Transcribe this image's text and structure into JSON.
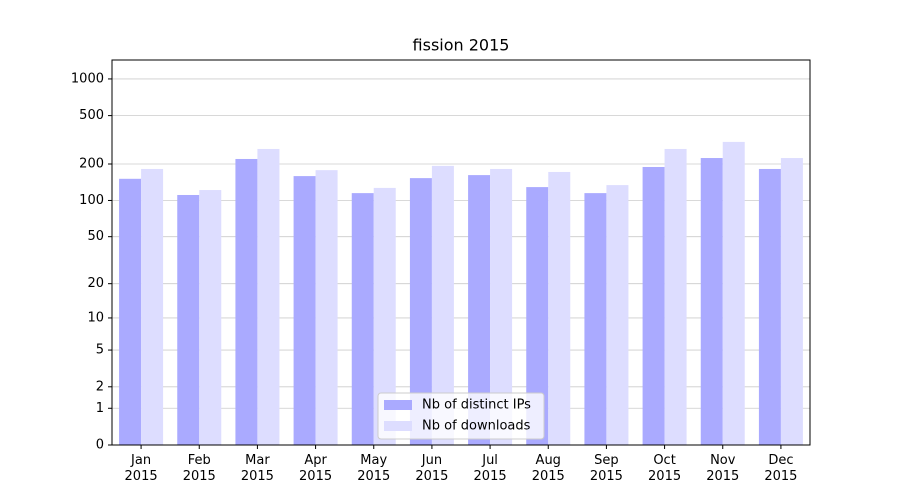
{
  "chart_data": {
    "type": "bar",
    "title": "fission 2015",
    "categories": [
      "Jan\n2015",
      "Feb\n2015",
      "Mar\n2015",
      "Apr\n2015",
      "May\n2015",
      "Jun\n2015",
      "Jul\n2015",
      "Aug\n2015",
      "Sep\n2015",
      "Oct\n2015",
      "Nov\n2015",
      "Dec\n2015"
    ],
    "series": [
      {
        "name": "Nb of distinct IPs",
        "color": "#aaaaff",
        "values": [
          151,
          111,
          220,
          159,
          115,
          153,
          162,
          129,
          115,
          189,
          224,
          182
        ]
      },
      {
        "name": "Nb of downloads",
        "color": "#ddddff",
        "values": [
          182,
          122,
          266,
          178,
          127,
          193,
          182,
          172,
          134,
          266,
          304,
          224
        ]
      }
    ],
    "yscale": "log1p",
    "ylim": [
      0,
      1430
    ],
    "yticks": [
      0,
      1,
      2,
      5,
      10,
      20,
      50,
      100,
      200,
      500,
      1000
    ],
    "grid": true,
    "legend": "lower center"
  }
}
